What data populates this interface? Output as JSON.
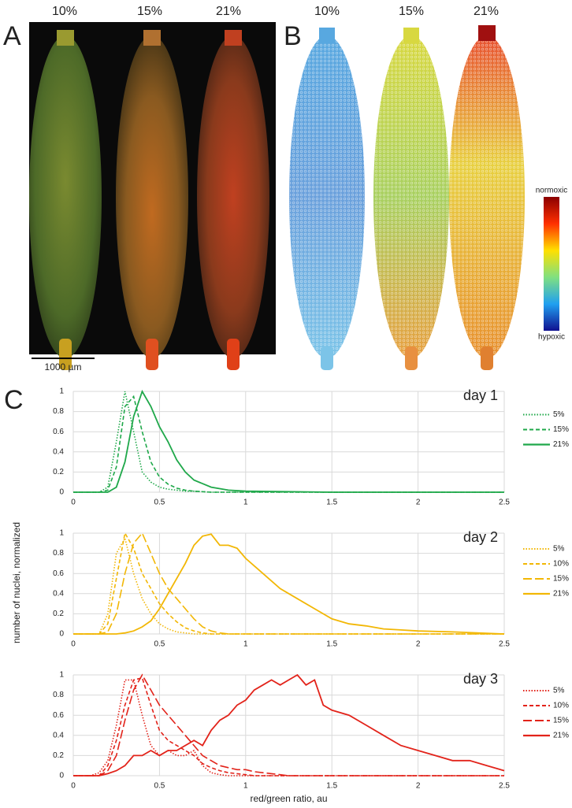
{
  "figure": {
    "panel_labels": [
      "A",
      "B",
      "C"
    ],
    "a_labels": [
      "10%",
      "15%",
      "21%"
    ],
    "b_labels": [
      "10%",
      "15%",
      "21%"
    ],
    "colorbar": {
      "top": "normoxic",
      "bottom": "hypoxic"
    },
    "scale_bar": "1000 µm"
  },
  "chart_data": [
    {
      "type": "line",
      "annotation": "day 1",
      "x": [
        0,
        0.1,
        0.15,
        0.2,
        0.25,
        0.3,
        0.35,
        0.4,
        0.45,
        0.5,
        0.55,
        0.6,
        0.65,
        0.7,
        0.8,
        0.9,
        1,
        1.5,
        2,
        2.5
      ],
      "series": [
        {
          "name": "5%",
          "color": "#1fa84a",
          "dash": "dotted",
          "values": [
            0,
            0,
            0,
            0.05,
            0.5,
            1,
            0.6,
            0.2,
            0.1,
            0.05,
            0.03,
            0.02,
            0.01,
            0.01,
            0,
            0,
            0,
            0,
            0,
            0
          ]
        },
        {
          "name": "15%",
          "color": "#1fa84a",
          "dash": "dashed",
          "values": [
            0,
            0,
            0,
            0.02,
            0.25,
            0.85,
            0.95,
            0.6,
            0.3,
            0.15,
            0.08,
            0.04,
            0.02,
            0.01,
            0,
            0,
            0,
            0,
            0,
            0
          ]
        },
        {
          "name": "21%",
          "color": "#1fa84a",
          "dash": "solid",
          "values": [
            0,
            0,
            0,
            0,
            0.05,
            0.3,
            0.75,
            1,
            0.85,
            0.65,
            0.5,
            0.32,
            0.2,
            0.12,
            0.05,
            0.02,
            0.01,
            0,
            0,
            0
          ]
        }
      ],
      "xlim": [
        0,
        2.5
      ],
      "xticks": [
        0,
        0.5,
        1,
        1.5,
        2,
        2.5
      ],
      "ylim": [
        0,
        1
      ],
      "yticks": [
        0,
        0.2,
        0.4,
        0.6,
        0.8,
        1
      ],
      "grid": true,
      "legend": "right"
    },
    {
      "type": "line",
      "annotation": "day 2",
      "ylabel": "number of nuclei, normalized",
      "x": [
        0,
        0.1,
        0.15,
        0.2,
        0.25,
        0.3,
        0.35,
        0.4,
        0.45,
        0.5,
        0.55,
        0.6,
        0.65,
        0.7,
        0.75,
        0.8,
        0.85,
        0.9,
        0.95,
        1,
        1.1,
        1.2,
        1.3,
        1.4,
        1.5,
        1.6,
        1.7,
        1.8,
        1.9,
        2,
        2.2,
        2.5
      ],
      "series": [
        {
          "name": "5%",
          "color": "#f2b705",
          "dash": "dotted",
          "values": [
            0,
            0,
            0,
            0.2,
            0.8,
            0.95,
            0.6,
            0.35,
            0.2,
            0.1,
            0.05,
            0.02,
            0.01,
            0,
            0,
            0,
            0,
            0,
            0,
            0,
            0,
            0,
            0,
            0,
            0,
            0,
            0,
            0,
            0,
            0,
            0,
            0
          ]
        },
        {
          "name": "10%",
          "color": "#f2b705",
          "dash": "dashed",
          "values": [
            0,
            0,
            0,
            0.1,
            0.55,
            1,
            0.85,
            0.6,
            0.45,
            0.3,
            0.2,
            0.12,
            0.06,
            0.03,
            0.01,
            0,
            0,
            0,
            0,
            0,
            0,
            0,
            0,
            0,
            0,
            0,
            0,
            0,
            0,
            0,
            0,
            0
          ]
        },
        {
          "name": "15%",
          "color": "#f2b705",
          "dash": "longdash",
          "values": [
            0,
            0,
            0,
            0.02,
            0.2,
            0.6,
            0.9,
            1,
            0.8,
            0.6,
            0.45,
            0.35,
            0.25,
            0.15,
            0.07,
            0.03,
            0.01,
            0,
            0,
            0,
            0,
            0,
            0,
            0,
            0,
            0,
            0,
            0,
            0,
            0,
            0,
            0
          ]
        },
        {
          "name": "21%",
          "color": "#f2b705",
          "dash": "solid",
          "values": [
            0,
            0,
            0,
            0,
            0,
            0.01,
            0.03,
            0.07,
            0.13,
            0.25,
            0.4,
            0.55,
            0.7,
            0.88,
            0.97,
            0.99,
            0.88,
            0.88,
            0.85,
            0.75,
            0.6,
            0.45,
            0.35,
            0.25,
            0.15,
            0.1,
            0.08,
            0.05,
            0.04,
            0.03,
            0.02,
            0
          ]
        }
      ],
      "xlim": [
        0,
        2.5
      ],
      "xticks": [
        0,
        0.5,
        1,
        1.5,
        2,
        2.5
      ],
      "ylim": [
        0,
        1
      ],
      "yticks": [
        0,
        0.2,
        0.4,
        0.6,
        0.8,
        1
      ],
      "grid": true,
      "legend": "right"
    },
    {
      "type": "line",
      "annotation": "day 3",
      "xlabel": "red/green ratio, au",
      "x": [
        0,
        0.1,
        0.15,
        0.2,
        0.25,
        0.3,
        0.35,
        0.4,
        0.45,
        0.5,
        0.55,
        0.6,
        0.65,
        0.7,
        0.75,
        0.8,
        0.85,
        0.9,
        0.95,
        1,
        1.05,
        1.1,
        1.15,
        1.2,
        1.25,
        1.3,
        1.35,
        1.4,
        1.45,
        1.5,
        1.6,
        1.7,
        1.8,
        1.9,
        2,
        2.1,
        2.2,
        2.3,
        2.4,
        2.5
      ],
      "series": [
        {
          "name": "5%",
          "color": "#e2231a",
          "dash": "dotted",
          "values": [
            0,
            0,
            0.03,
            0.15,
            0.5,
            0.95,
            0.95,
            0.6,
            0.3,
            0.2,
            0.25,
            0.2,
            0.2,
            0.25,
            0.1,
            0.03,
            0.01,
            0,
            0,
            0,
            0,
            0,
            0,
            0,
            0,
            0,
            0,
            0,
            0,
            0,
            0,
            0,
            0,
            0,
            0,
            0,
            0,
            0,
            0,
            0
          ]
        },
        {
          "name": "10%",
          "color": "#e2231a",
          "dash": "dashed",
          "values": [
            0,
            0,
            0,
            0.1,
            0.35,
            0.7,
            0.95,
            0.97,
            0.7,
            0.45,
            0.35,
            0.3,
            0.25,
            0.2,
            0.12,
            0.08,
            0.05,
            0.03,
            0.02,
            0.01,
            0,
            0,
            0,
            0,
            0,
            0,
            0,
            0,
            0,
            0,
            0,
            0,
            0,
            0,
            0,
            0,
            0,
            0,
            0,
            0
          ]
        },
        {
          "name": "15%",
          "color": "#e2231a",
          "dash": "longdash",
          "values": [
            0,
            0,
            0,
            0.05,
            0.2,
            0.55,
            0.85,
            1,
            0.85,
            0.7,
            0.6,
            0.5,
            0.4,
            0.3,
            0.2,
            0.15,
            0.1,
            0.08,
            0.06,
            0.06,
            0.04,
            0.03,
            0.02,
            0.01,
            0,
            0,
            0,
            0,
            0,
            0,
            0,
            0,
            0,
            0,
            0,
            0,
            0,
            0,
            0,
            0
          ]
        },
        {
          "name": "21%",
          "color": "#e2231a",
          "dash": "solid",
          "values": [
            0,
            0,
            0,
            0.02,
            0.05,
            0.1,
            0.2,
            0.2,
            0.25,
            0.2,
            0.25,
            0.25,
            0.3,
            0.35,
            0.3,
            0.45,
            0.55,
            0.6,
            0.7,
            0.75,
            0.85,
            0.9,
            0.95,
            0.9,
            0.95,
            1,
            0.9,
            0.95,
            0.7,
            0.65,
            0.6,
            0.5,
            0.4,
            0.3,
            0.25,
            0.2,
            0.15,
            0.15,
            0.1,
            0.05
          ]
        }
      ],
      "xlim": [
        0,
        2.5
      ],
      "xticks": [
        0,
        0.5,
        1,
        1.5,
        2,
        2.5
      ],
      "ylim": [
        0,
        1
      ],
      "yticks": [
        0,
        0.2,
        0.4,
        0.6,
        0.8,
        1
      ],
      "grid": true,
      "legend": "right"
    }
  ]
}
